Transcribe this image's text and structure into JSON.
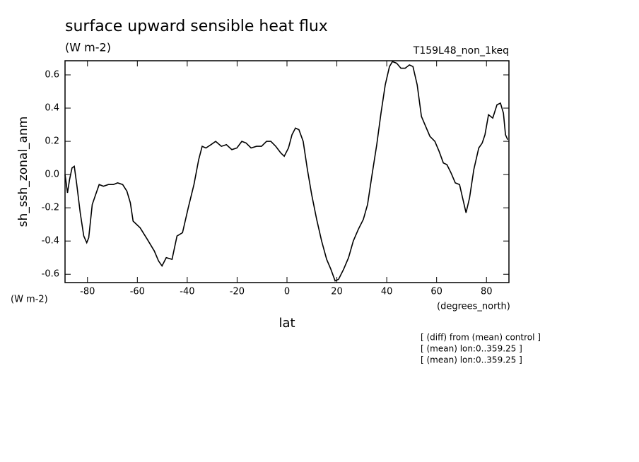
{
  "chart_data": {
    "type": "line",
    "title": "surface upward sensible heat flux",
    "units": "(W m-2)",
    "run_label": "T159L48_non_1keq",
    "ylabel": "sh_ssh_zonal_anm",
    "ylabel_units": "(W m-2)",
    "xlabel": "lat",
    "xlabel_units": "(degrees_north)",
    "notes": [
      "[ (diff) from (mean) control ]",
      "[ (mean) lon:0..359.25 ]",
      "[ (mean) lon:0..359.25 ]"
    ],
    "x": [
      -89,
      -88,
      -87.2,
      -86.2,
      -85.3,
      -84.3,
      -82.9,
      -81.5,
      -80.3,
      -79.5,
      -78.1,
      -76.7,
      -75.3,
      -73.6,
      -71.6,
      -69.6,
      -67.9,
      -65.9,
      -64.2,
      -62.8,
      -61.7,
      -58.9,
      -56,
      -53.2,
      -51.5,
      -50.1,
      -48.4,
      -46.1,
      -44.1,
      -41.9,
      -39.6,
      -37.3,
      -35.4,
      -34,
      -32.5,
      -30.5,
      -28.6,
      -26.3,
      -24.3,
      -22.1,
      -20.1,
      -18.1,
      -16.4,
      -14.4,
      -12.2,
      -10.2,
      -8.2,
      -6.5,
      -4.5,
      -2.5,
      -1.1,
      0.6,
      2,
      3.4,
      4.8,
      6.5,
      8.2,
      9.9,
      11.9,
      13.9,
      15.9,
      17.6,
      19.3,
      20.7,
      22.7,
      24.7,
      26.6,
      28.6,
      30.6,
      32.3,
      34,
      36,
      37.7,
      39.4,
      41.1,
      42.3,
      44,
      45.7,
      47.4,
      49.1,
      50.5,
      52.2,
      53.9,
      55.6,
      57.3,
      59.3,
      61,
      62.7,
      64.1,
      65.8,
      67.5,
      69.2,
      70.4,
      71.8,
      73.2,
      74.9,
      76.9,
      78.3,
      79.4,
      80.8,
      82.5,
      84.2,
      85.6,
      86.8,
      87.6,
      88.5
    ],
    "series": [
      {
        "name": "sh_ssh_zonal_anm",
        "color": "#000000",
        "values": [
          0.0,
          -0.11,
          -0.03,
          0.04,
          0.05,
          -0.06,
          -0.23,
          -0.37,
          -0.41,
          -0.38,
          -0.18,
          -0.12,
          -0.06,
          -0.07,
          -0.06,
          -0.06,
          -0.05,
          -0.06,
          -0.1,
          -0.17,
          -0.28,
          -0.32,
          -0.39,
          -0.46,
          -0.52,
          -0.55,
          -0.5,
          -0.51,
          -0.37,
          -0.35,
          -0.2,
          -0.06,
          0.09,
          0.17,
          0.16,
          0.18,
          0.2,
          0.17,
          0.18,
          0.15,
          0.16,
          0.2,
          0.19,
          0.16,
          0.17,
          0.17,
          0.2,
          0.2,
          0.17,
          0.13,
          0.11,
          0.16,
          0.24,
          0.28,
          0.27,
          0.2,
          0.03,
          -0.12,
          -0.27,
          -0.4,
          -0.51,
          -0.57,
          -0.64,
          -0.63,
          -0.57,
          -0.5,
          -0.4,
          -0.33,
          -0.27,
          -0.18,
          -0.01,
          0.18,
          0.37,
          0.54,
          0.65,
          0.68,
          0.67,
          0.64,
          0.64,
          0.66,
          0.65,
          0.54,
          0.35,
          0.29,
          0.23,
          0.2,
          0.14,
          0.07,
          0.06,
          0.01,
          -0.05,
          -0.06,
          -0.14,
          -0.23,
          -0.14,
          0.03,
          0.16,
          0.19,
          0.24,
          0.36,
          0.34,
          0.42,
          0.43,
          0.37,
          0.24,
          0.21
        ]
      }
    ],
    "xlim": [
      -89,
      89
    ],
    "ylim": [
      -0.65,
      0.685
    ],
    "xticks": [
      -80,
      -60,
      -40,
      -20,
      0,
      20,
      40,
      60,
      80
    ],
    "yticks": [
      -0.6,
      -0.4,
      -0.2,
      {
        "value": 0,
        "label": "0.0"
      },
      0.2,
      0.4,
      0.6
    ]
  }
}
